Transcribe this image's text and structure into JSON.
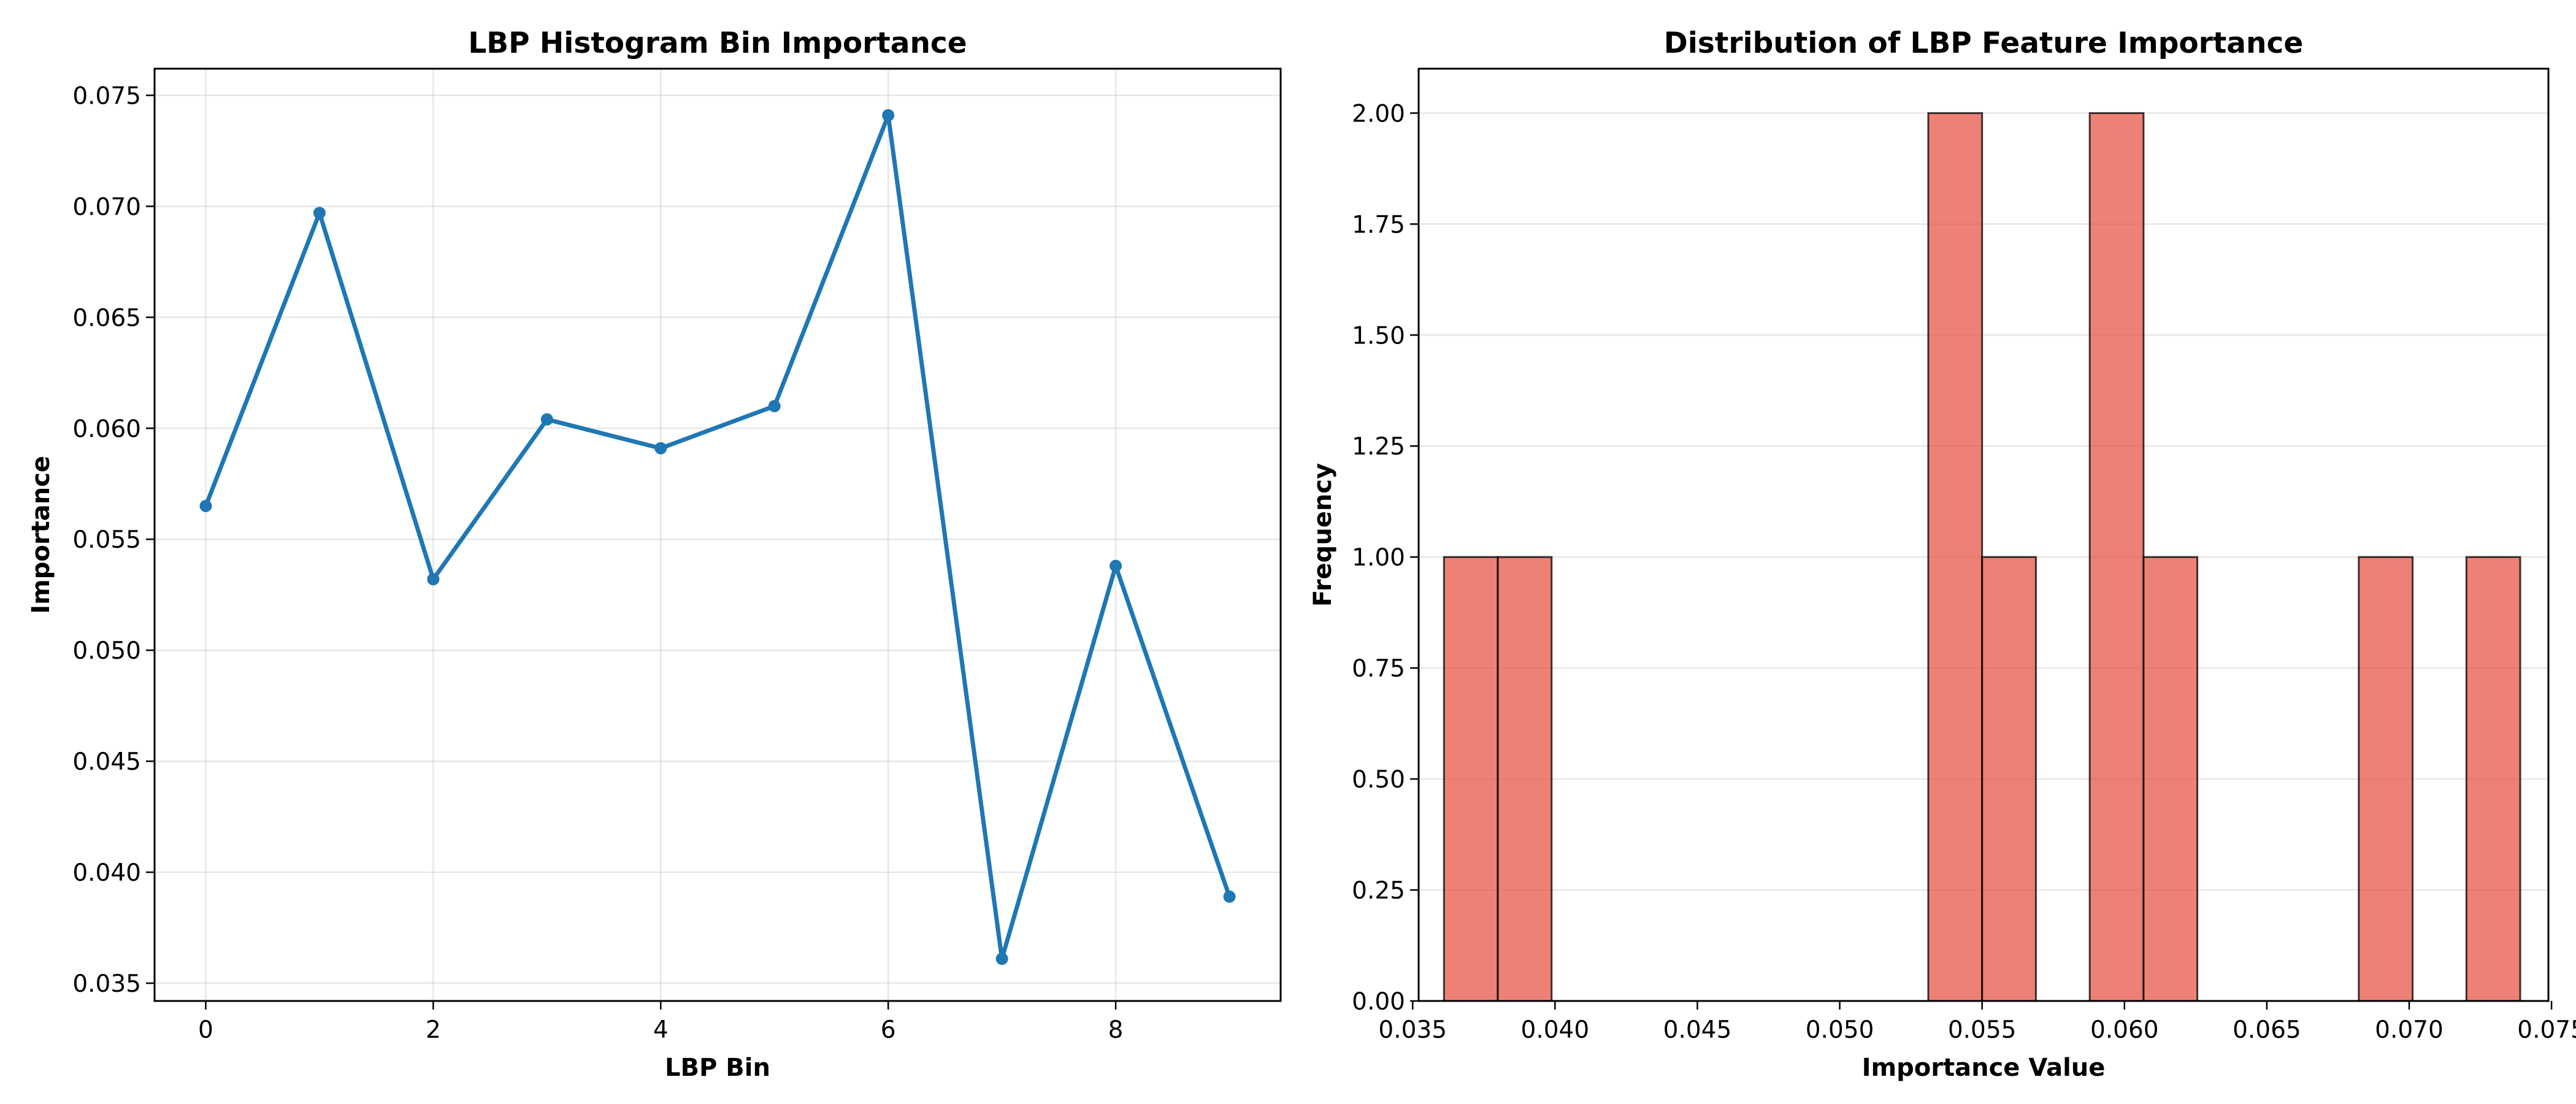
{
  "chart_data": [
    {
      "type": "line",
      "title": "LBP Histogram Bin Importance",
      "xlabel": "LBP Bin",
      "ylabel": "Importance",
      "x": [
        0,
        1,
        2,
        3,
        4,
        5,
        6,
        7,
        8,
        9
      ],
      "series": [
        {
          "values": [
            0.0565,
            0.0697,
            0.0532,
            0.0604,
            0.0591,
            0.061,
            0.0741,
            0.0361,
            0.0538,
            0.0389
          ]
        }
      ],
      "xlim": [
        -0.45,
        9.45
      ],
      "ylim": [
        0.0342,
        0.0762
      ],
      "xticks": [
        0,
        2,
        4,
        6,
        8
      ],
      "xtick_labels": [
        "0",
        "2",
        "4",
        "6",
        "8"
      ],
      "yticks": [
        0.035,
        0.04,
        0.045,
        0.05,
        0.055,
        0.06,
        0.065,
        0.07,
        0.075
      ],
      "ytick_labels": [
        "0.035",
        "0.040",
        "0.045",
        "0.050",
        "0.055",
        "0.060",
        "0.065",
        "0.070",
        "0.075"
      ],
      "grid": true,
      "color": "#1f77b4"
    },
    {
      "type": "bar",
      "title": "Distribution of LBP Feature Importance",
      "xlabel": "Importance Value",
      "ylabel": "Frequency",
      "bin_edges": [
        0.0361,
        0.03799,
        0.03988,
        0.04177,
        0.04366,
        0.04555,
        0.04744,
        0.04933,
        0.05122,
        0.05311,
        0.055,
        0.05689,
        0.05878,
        0.06067,
        0.06256,
        0.06445,
        0.06634,
        0.06823,
        0.07012,
        0.07201,
        0.0739
      ],
      "values": [
        1,
        1,
        0,
        0,
        0,
        0,
        0,
        0,
        0,
        2,
        1,
        0,
        2,
        1,
        0,
        0,
        0,
        1,
        0,
        1
      ],
      "xlim": [
        0.03521,
        0.07489
      ],
      "ylim": [
        0,
        2.1
      ],
      "xticks": [
        0.035,
        0.04,
        0.045,
        0.05,
        0.055,
        0.06,
        0.065,
        0.07,
        0.075
      ],
      "xtick_labels": [
        "0.035",
        "0.040",
        "0.045",
        "0.050",
        "0.055",
        "0.060",
        "0.065",
        "0.070",
        "0.075"
      ],
      "yticks": [
        0,
        0.25,
        0.5,
        0.75,
        1.0,
        1.25,
        1.5,
        1.75,
        2.0
      ],
      "ytick_labels": [
        "0.00",
        "0.25",
        "0.50",
        "0.75",
        "1.00",
        "1.25",
        "1.50",
        "1.75",
        "2.00"
      ],
      "grid": "y",
      "color": "#e74c3c",
      "edge_color": "#000000"
    }
  ]
}
